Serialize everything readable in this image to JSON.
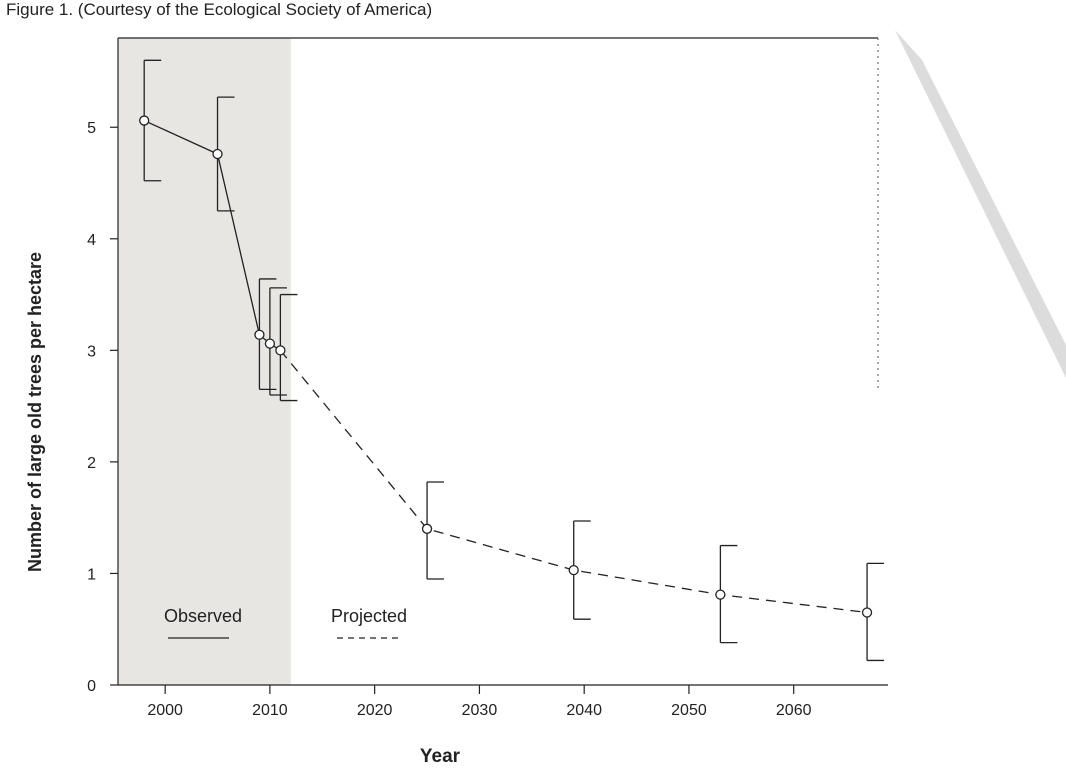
{
  "page_caption": "Figure 1. (Courtesy of the Ecological Society of America)",
  "chart_data": {
    "type": "line",
    "title": "",
    "xlabel": "Year",
    "ylabel": "Number of large old trees per hectare",
    "xlim": [
      1995.5,
      2069
    ],
    "ylim": [
      0,
      5.8
    ],
    "x_ticks": [
      2000,
      2010,
      2020,
      2030,
      2040,
      2050,
      2060
    ],
    "y_ticks": [
      0,
      1,
      2,
      3,
      4,
      5
    ],
    "grid": false,
    "observed_period_end": 2012,
    "annotations": {
      "observed_label": "Observed",
      "projected_label": "Projected"
    },
    "series": [
      {
        "name": "Observed",
        "line_style": "solid",
        "points": [
          {
            "x": 1998,
            "y": 5.06,
            "lower": 4.52,
            "upper": 5.6
          },
          {
            "x": 2005,
            "y": 4.76,
            "lower": 4.25,
            "upper": 5.27
          },
          {
            "x": 2009,
            "y": 3.14,
            "lower": 2.65,
            "upper": 3.64
          },
          {
            "x": 2010,
            "y": 3.06,
            "lower": 2.6,
            "upper": 3.56
          },
          {
            "x": 2011,
            "y": 3.0,
            "lower": 2.55,
            "upper": 3.5
          }
        ]
      },
      {
        "name": "Projected",
        "line_style": "dashed",
        "points": [
          {
            "x": 2011,
            "y": 3.0
          },
          {
            "x": 2025,
            "y": 1.4,
            "lower": 0.95,
            "upper": 1.82
          },
          {
            "x": 2039,
            "y": 1.03,
            "lower": 0.59,
            "upper": 1.47
          },
          {
            "x": 2053,
            "y": 0.81,
            "lower": 0.38,
            "upper": 1.25
          },
          {
            "x": 2067,
            "y": 0.65,
            "lower": 0.22,
            "upper": 1.09
          }
        ]
      }
    ]
  }
}
